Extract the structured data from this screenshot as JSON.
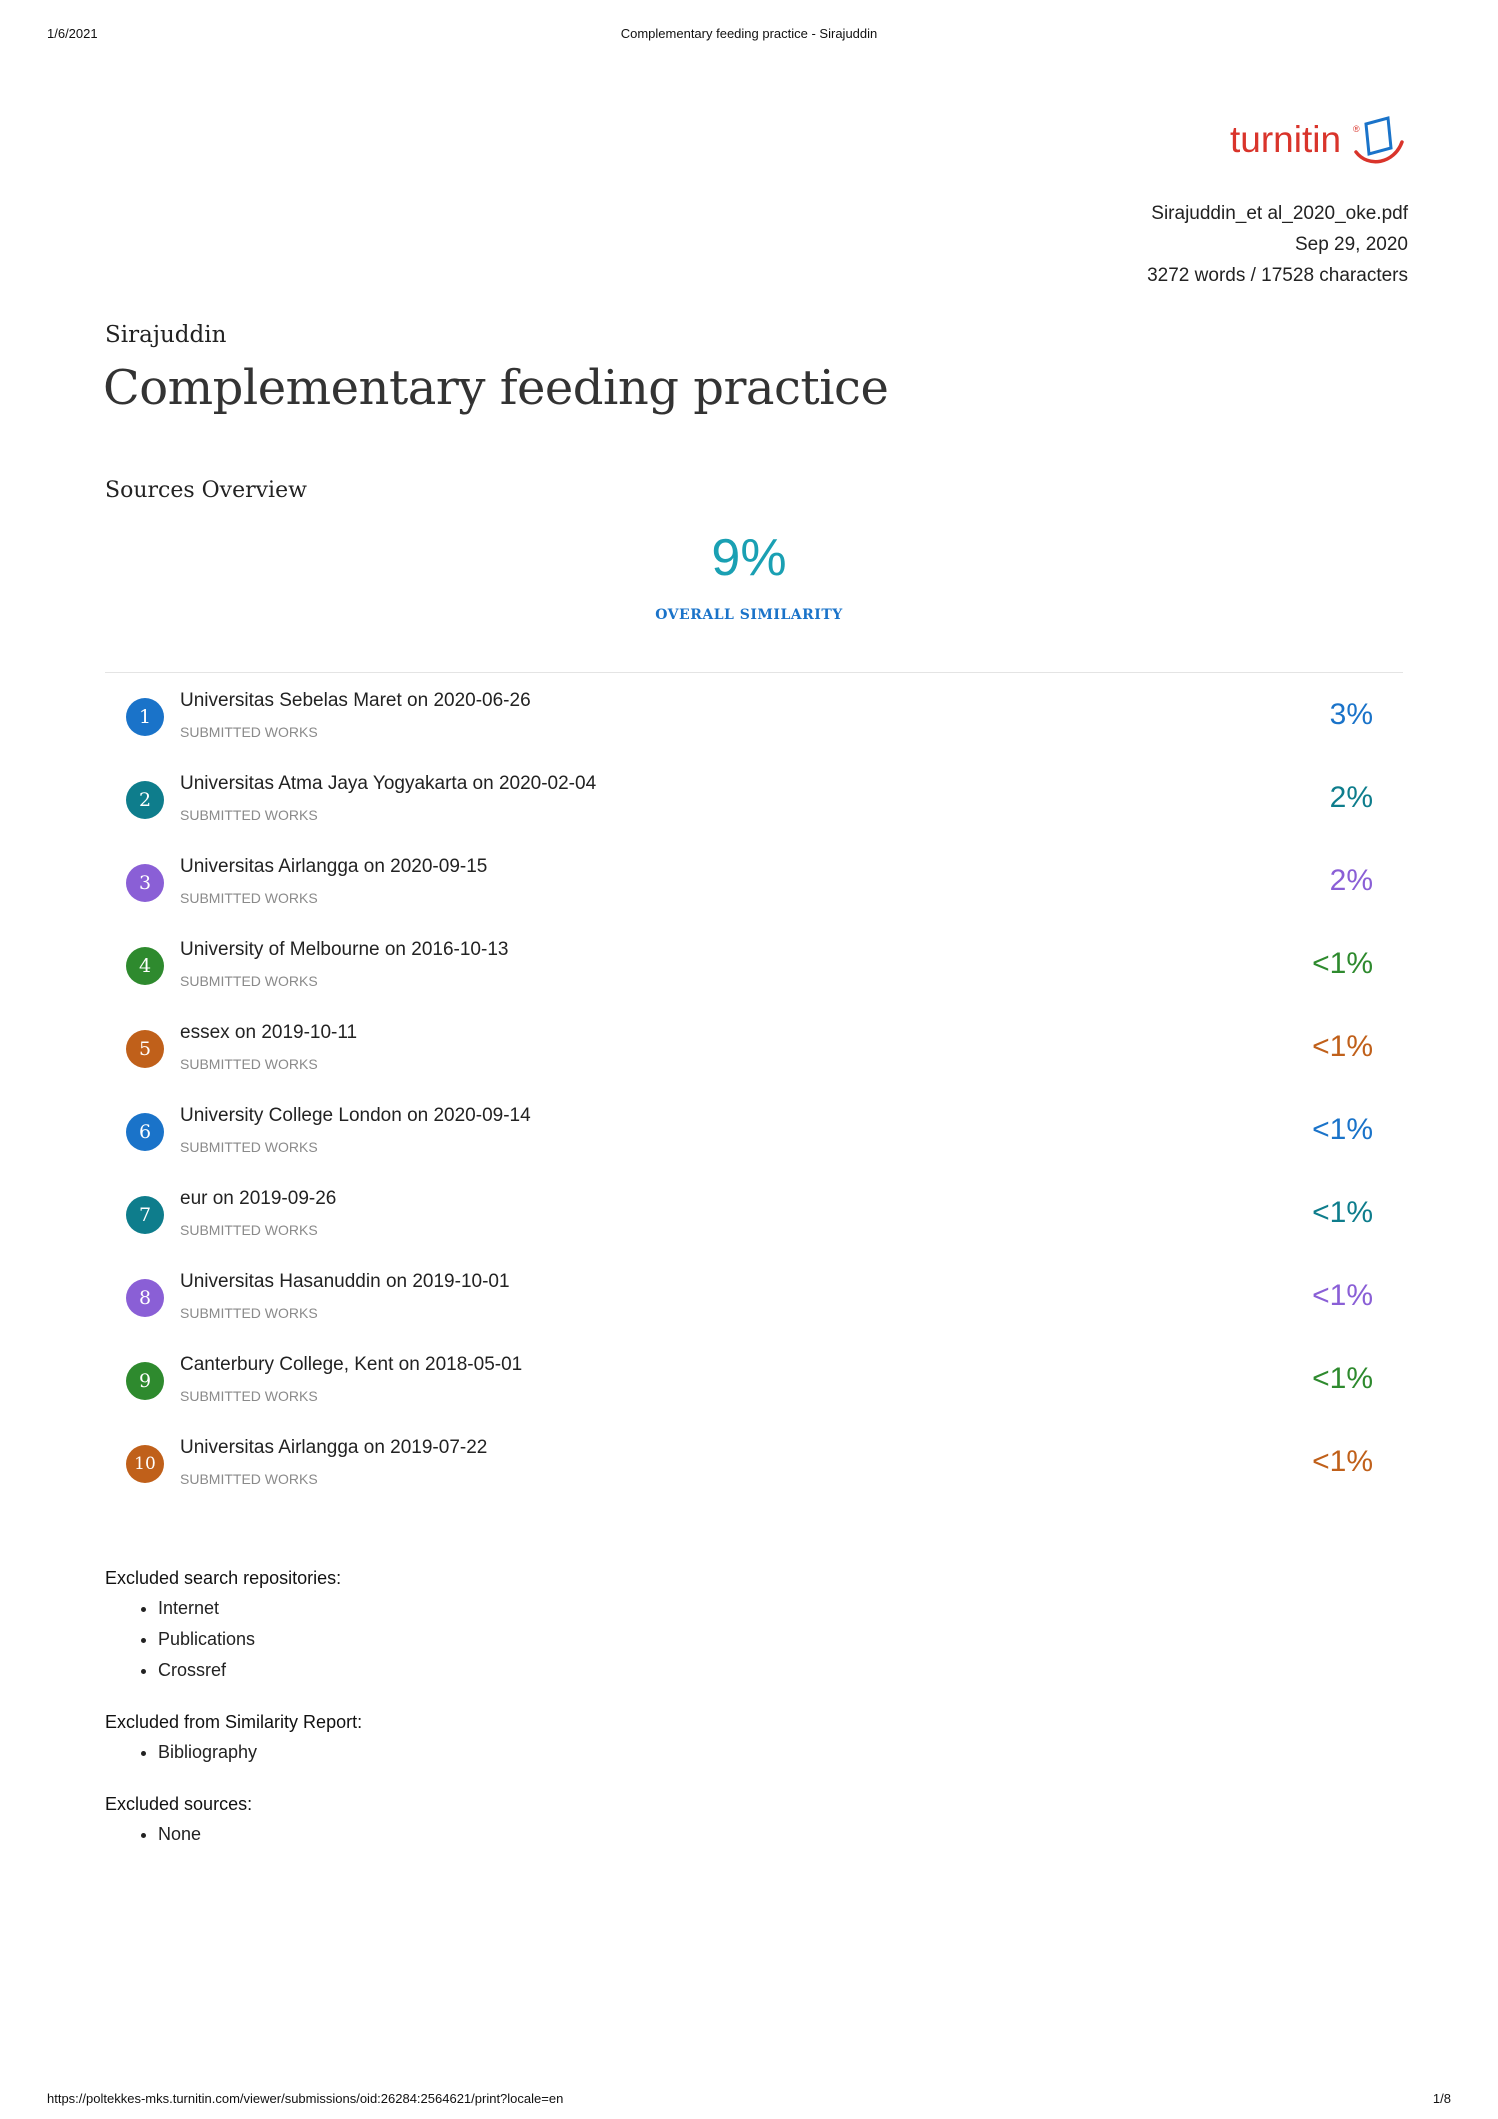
{
  "print_header": {
    "date": "1/6/2021",
    "title": "Complementary feeding practice - Sirajuddin"
  },
  "print_footer": {
    "url": "https://poltekkes-mks.turnitin.com/viewer/submissions/oid:26284:2564621/print?locale=en",
    "page": "1/8"
  },
  "logo": {
    "text": "turnitin"
  },
  "meta": {
    "filename": "Sirajuddin_et al_2020_oke.pdf",
    "date": "Sep 29, 2020",
    "counts": "3272 words / 17528 characters"
  },
  "author": "Sirajuddin",
  "title": "Complementary feeding practice",
  "sources_heading": "Sources Overview",
  "overall": {
    "value": "9%",
    "label": "OVERALL SIMILARITY",
    "color": "#1aa0b3"
  },
  "sources": [
    {
      "num": "1",
      "name": "Universitas Sebelas Maret on 2020-06-26",
      "type": "SUBMITTED WORKS",
      "pct": "3%",
      "color": "#1a73c9"
    },
    {
      "num": "2",
      "name": "Universitas Atma Jaya Yogyakarta on 2020-02-04",
      "type": "SUBMITTED WORKS",
      "pct": "2%",
      "color": "#0e7d8c"
    },
    {
      "num": "3",
      "name": "Universitas Airlangga on 2020-09-15",
      "type": "SUBMITTED WORKS",
      "pct": "2%",
      "color": "#8a5fd6"
    },
    {
      "num": "4",
      "name": "University of Melbourne on 2016-10-13",
      "type": "SUBMITTED WORKS",
      "pct": "<1%",
      "color": "#2e8a2e"
    },
    {
      "num": "5",
      "name": "essex on 2019-10-11",
      "type": "SUBMITTED WORKS",
      "pct": "<1%",
      "color": "#c0601a"
    },
    {
      "num": "6",
      "name": "University College London on 2020-09-14",
      "type": "SUBMITTED WORKS",
      "pct": "<1%",
      "color": "#1a73c9"
    },
    {
      "num": "7",
      "name": "eur on 2019-09-26",
      "type": "SUBMITTED WORKS",
      "pct": "<1%",
      "color": "#0e7d8c"
    },
    {
      "num": "8",
      "name": "Universitas Hasanuddin on 2019-10-01",
      "type": "SUBMITTED WORKS",
      "pct": "<1%",
      "color": "#8a5fd6"
    },
    {
      "num": "9",
      "name": "Canterbury College, Kent on 2018-05-01",
      "type": "SUBMITTED WORKS",
      "pct": "<1%",
      "color": "#2e8a2e"
    },
    {
      "num": "10",
      "name": "Universitas Airlangga on 2019-07-22",
      "type": "SUBMITTED WORKS",
      "pct": "<1%",
      "color": "#c0601a"
    }
  ],
  "excluded_repositories": {
    "heading": "Excluded search repositories:",
    "items": [
      "Internet",
      "Publications",
      "Crossref"
    ]
  },
  "excluded_report": {
    "heading": "Excluded from Similarity Report:",
    "items": [
      "Bibliography"
    ]
  },
  "excluded_sources": {
    "heading": "Excluded sources:",
    "items": [
      "None"
    ]
  }
}
